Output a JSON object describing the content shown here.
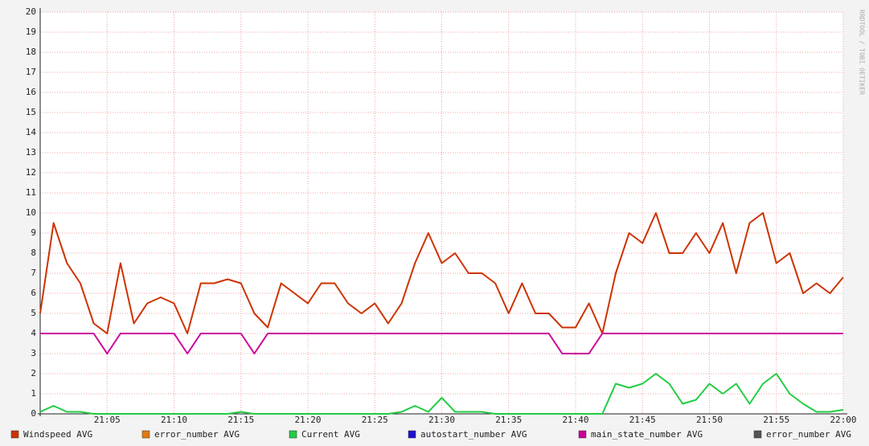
{
  "chart_data": {
    "type": "line",
    "watermark": "RRDTOOL / TOBI OETIKER",
    "x": [
      "21:00",
      "21:01",
      "21:02",
      "21:03",
      "21:04",
      "21:05",
      "21:06",
      "21:07",
      "21:08",
      "21:09",
      "21:10",
      "21:11",
      "21:12",
      "21:13",
      "21:14",
      "21:15",
      "21:16",
      "21:17",
      "21:18",
      "21:19",
      "21:20",
      "21:21",
      "21:22",
      "21:23",
      "21:24",
      "21:25",
      "21:26",
      "21:27",
      "21:28",
      "21:29",
      "21:30",
      "21:31",
      "21:32",
      "21:33",
      "21:34",
      "21:35",
      "21:36",
      "21:37",
      "21:38",
      "21:39",
      "21:40",
      "21:41",
      "21:42",
      "21:43",
      "21:44",
      "21:45",
      "21:46",
      "21:47",
      "21:48",
      "21:49",
      "21:50",
      "21:51",
      "21:52",
      "21:53",
      "21:54",
      "21:55",
      "21:56",
      "21:57",
      "21:58",
      "21:59",
      "22:00"
    ],
    "xlim": [
      "21:00",
      "22:00"
    ],
    "xticks": [
      "21:05",
      "21:10",
      "21:15",
      "21:20",
      "21:25",
      "21:30",
      "21:35",
      "21:40",
      "21:45",
      "21:50",
      "21:55",
      "22:00"
    ],
    "ylim": [
      0,
      20
    ],
    "yticks": [
      0,
      1,
      2,
      3,
      4,
      5,
      6,
      7,
      8,
      9,
      10,
      11,
      12,
      13,
      14,
      15,
      16,
      17,
      18,
      19,
      20
    ],
    "grid": true,
    "series": [
      {
        "name": "Windspeed AVG",
        "color": "#cc3300",
        "values": [
          5.0,
          9.5,
          7.5,
          6.5,
          4.5,
          4.0,
          7.5,
          4.5,
          5.5,
          5.8,
          5.5,
          4.0,
          6.5,
          6.5,
          6.7,
          6.5,
          5.0,
          4.3,
          6.5,
          6.0,
          5.5,
          6.5,
          6.5,
          5.5,
          5.0,
          5.5,
          4.5,
          5.5,
          7.5,
          9.0,
          7.5,
          8.0,
          7.0,
          7.0,
          6.5,
          5.0,
          6.5,
          5.0,
          5.0,
          4.3,
          4.3,
          5.5,
          4.0,
          7.0,
          9.0,
          8.5,
          10.0,
          8.0,
          8.0,
          9.0,
          8.0,
          9.5,
          7.0,
          9.5,
          10.0,
          7.5,
          8.0,
          6.0,
          6.5,
          6.0,
          6.8
        ]
      },
      {
        "name": "error_number AVG",
        "color": "#e07a10",
        "values": [
          null,
          null,
          null,
          null,
          null,
          null,
          null,
          null,
          null,
          null,
          null,
          null,
          null,
          null,
          null,
          null,
          null,
          null,
          null,
          null,
          null,
          null,
          null,
          null,
          null,
          null,
          null,
          null,
          null,
          null,
          null,
          null,
          null,
          null,
          null,
          null,
          null,
          null,
          null,
          null,
          null,
          null,
          null,
          null,
          null,
          null,
          null,
          null,
          null,
          null,
          null,
          null,
          null,
          null,
          null,
          null,
          null,
          null,
          null,
          null,
          null
        ]
      },
      {
        "name": "Current AVG",
        "color": "#22cc44",
        "values": [
          0.1,
          0.4,
          0.1,
          0.1,
          0,
          0,
          0,
          0,
          0,
          0,
          0,
          0,
          0,
          0,
          0,
          0.1,
          0,
          0,
          0,
          0,
          0,
          0,
          0,
          0,
          0,
          0,
          0,
          0.1,
          0.4,
          0.1,
          0.8,
          0.1,
          0.1,
          0.1,
          0,
          0,
          0,
          0,
          0,
          0,
          0,
          0,
          0,
          1.5,
          1.3,
          1.5,
          2.0,
          1.5,
          0.5,
          0.7,
          1.5,
          1.0,
          1.5,
          0.5,
          1.5,
          2.0,
          1.0,
          0.5,
          0.1,
          0.1,
          0.2
        ]
      },
      {
        "name": "autostart_number AVG",
        "color": "#2211cc",
        "values": [
          null,
          null,
          null,
          null,
          null,
          null,
          null,
          null,
          null,
          null,
          null,
          null,
          null,
          null,
          null,
          null,
          null,
          null,
          null,
          null,
          null,
          null,
          null,
          null,
          null,
          null,
          null,
          null,
          null,
          null,
          null,
          null,
          null,
          null,
          null,
          null,
          null,
          null,
          null,
          null,
          null,
          null,
          null,
          null,
          null,
          null,
          null,
          null,
          null,
          null,
          null,
          null,
          null,
          null,
          null,
          null,
          null,
          null,
          null,
          null,
          null
        ]
      },
      {
        "name": "main_state_number AVG",
        "color": "#cc0099",
        "values": [
          4,
          4,
          4,
          4,
          4,
          3,
          4,
          4,
          4,
          4,
          4,
          3,
          4,
          4,
          4,
          4,
          3,
          4,
          4,
          4,
          4,
          4,
          4,
          4,
          4,
          4,
          4,
          4,
          4,
          4,
          4,
          4,
          4,
          4,
          4,
          4,
          4,
          4,
          4,
          3,
          3,
          3,
          4,
          4,
          4,
          4,
          4,
          4,
          4,
          4,
          4,
          4,
          4,
          4,
          4,
          4,
          4,
          4,
          4,
          4,
          4
        ]
      },
      {
        "name": "error_number AVG",
        "color": "#555555",
        "values": [
          null,
          null,
          null,
          null,
          null,
          null,
          null,
          null,
          null,
          null,
          null,
          null,
          null,
          null,
          null,
          null,
          null,
          null,
          null,
          null,
          null,
          null,
          null,
          null,
          null,
          null,
          null,
          null,
          null,
          null,
          null,
          null,
          null,
          null,
          null,
          null,
          null,
          null,
          null,
          null,
          null,
          null,
          null,
          null,
          null,
          null,
          null,
          null,
          null,
          null,
          null,
          null,
          null,
          null,
          null,
          null,
          null,
          null,
          null,
          null,
          null
        ]
      }
    ]
  }
}
